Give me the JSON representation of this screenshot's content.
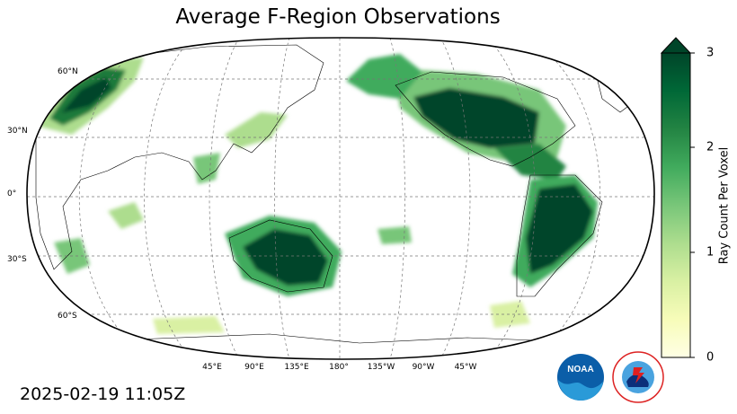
{
  "title": "Average F-Region Observations",
  "timestamp": "2025-02-19 11:05Z",
  "lat_labels": [
    "60°N",
    "30°N",
    "0°",
    "30°S",
    "60°S"
  ],
  "lon_labels": [
    "45°E",
    "90°E",
    "135°E",
    "180°",
    "135°W",
    "90°W",
    "45°W"
  ],
  "colorbar": {
    "label": "Ray Count Per Voxel",
    "ticks": [
      "0",
      "1",
      "2",
      "3"
    ],
    "min": 0,
    "max": 3,
    "extend": "max",
    "colors": [
      "#ffffe5",
      "#f7fcb9",
      "#d9f0a3",
      "#addd8e",
      "#78c679",
      "#41ab5d",
      "#238443",
      "#006837",
      "#004529"
    ]
  },
  "logos": {
    "noaa": "NOAA",
    "nws": "NATIONAL WEATHER SERVICE"
  },
  "map": {
    "projection": "Robinson, centered 180°",
    "gridlines": "dashed gray every 30° lat / 45° lon",
    "ocean_color": "#ffffff",
    "land_outline_color": "#000000"
  }
}
